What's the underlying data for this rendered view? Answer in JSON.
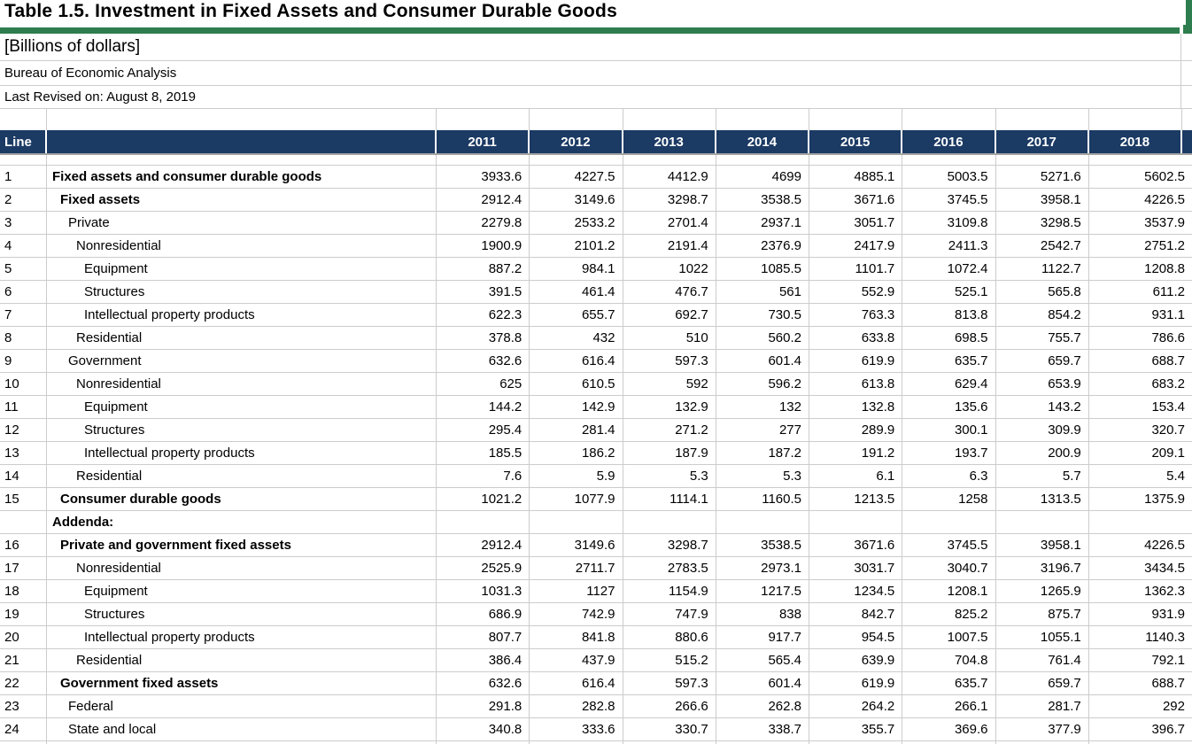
{
  "title": "Table 1.5. Investment in Fixed Assets and Consumer Durable Goods",
  "subtitle": "[Billions of dollars]",
  "source": "Bureau of Economic Analysis",
  "revised": "Last Revised on: August 8, 2019",
  "colors": {
    "header_background": "#1B3A64",
    "accent_green": "#2E7D4E",
    "gridline": "#CCCCCC",
    "header_underline": "#A3A3A3"
  },
  "table": {
    "line_header": "Line",
    "years": [
      "2011",
      "2012",
      "2013",
      "2014",
      "2015",
      "2016",
      "2017",
      "2018"
    ],
    "rows": [
      {
        "line": "1",
        "label": "Fixed assets and consumer durable goods",
        "indent": 0,
        "bold": true,
        "values": [
          "3933.6",
          "4227.5",
          "4412.9",
          "4699",
          "4885.1",
          "5003.5",
          "5271.6",
          "5602.5"
        ]
      },
      {
        "line": "2",
        "label": "Fixed assets",
        "indent": 1,
        "bold": true,
        "values": [
          "2912.4",
          "3149.6",
          "3298.7",
          "3538.5",
          "3671.6",
          "3745.5",
          "3958.1",
          "4226.5"
        ]
      },
      {
        "line": "3",
        "label": "Private",
        "indent": 2,
        "bold": false,
        "values": [
          "2279.8",
          "2533.2",
          "2701.4",
          "2937.1",
          "3051.7",
          "3109.8",
          "3298.5",
          "3537.9"
        ]
      },
      {
        "line": "4",
        "label": "Nonresidential",
        "indent": 3,
        "bold": false,
        "values": [
          "1900.9",
          "2101.2",
          "2191.4",
          "2376.9",
          "2417.9",
          "2411.3",
          "2542.7",
          "2751.2"
        ]
      },
      {
        "line": "5",
        "label": "Equipment",
        "indent": 4,
        "bold": false,
        "values": [
          "887.2",
          "984.1",
          "1022",
          "1085.5",
          "1101.7",
          "1072.4",
          "1122.7",
          "1208.8"
        ]
      },
      {
        "line": "6",
        "label": "Structures",
        "indent": 4,
        "bold": false,
        "values": [
          "391.5",
          "461.4",
          "476.7",
          "561",
          "552.9",
          "525.1",
          "565.8",
          "611.2"
        ]
      },
      {
        "line": "7",
        "label": "Intellectual property products",
        "indent": 4,
        "bold": false,
        "values": [
          "622.3",
          "655.7",
          "692.7",
          "730.5",
          "763.3",
          "813.8",
          "854.2",
          "931.1"
        ]
      },
      {
        "line": "8",
        "label": "Residential",
        "indent": 3,
        "bold": false,
        "values": [
          "378.8",
          "432",
          "510",
          "560.2",
          "633.8",
          "698.5",
          "755.7",
          "786.6"
        ]
      },
      {
        "line": "9",
        "label": "Government",
        "indent": 2,
        "bold": false,
        "values": [
          "632.6",
          "616.4",
          "597.3",
          "601.4",
          "619.9",
          "635.7",
          "659.7",
          "688.7"
        ]
      },
      {
        "line": "10",
        "label": "Nonresidential",
        "indent": 3,
        "bold": false,
        "values": [
          "625",
          "610.5",
          "592",
          "596.2",
          "613.8",
          "629.4",
          "653.9",
          "683.2"
        ]
      },
      {
        "line": "11",
        "label": "Equipment",
        "indent": 4,
        "bold": false,
        "values": [
          "144.2",
          "142.9",
          "132.9",
          "132",
          "132.8",
          "135.6",
          "143.2",
          "153.4"
        ]
      },
      {
        "line": "12",
        "label": "Structures",
        "indent": 4,
        "bold": false,
        "values": [
          "295.4",
          "281.4",
          "271.2",
          "277",
          "289.9",
          "300.1",
          "309.9",
          "320.7"
        ]
      },
      {
        "line": "13",
        "label": "Intellectual property products",
        "indent": 4,
        "bold": false,
        "values": [
          "185.5",
          "186.2",
          "187.9",
          "187.2",
          "191.2",
          "193.7",
          "200.9",
          "209.1"
        ]
      },
      {
        "line": "14",
        "label": "Residential",
        "indent": 3,
        "bold": false,
        "values": [
          "7.6",
          "5.9",
          "5.3",
          "5.3",
          "6.1",
          "6.3",
          "5.7",
          "5.4"
        ]
      },
      {
        "line": "15",
        "label": "Consumer durable goods",
        "indent": 1,
        "bold": true,
        "values": [
          "1021.2",
          "1077.9",
          "1114.1",
          "1160.5",
          "1213.5",
          "1258",
          "1313.5",
          "1375.9"
        ]
      },
      {
        "line": "",
        "label": "Addenda:",
        "indent": 0,
        "bold": true,
        "values": [
          "",
          "",
          "",
          "",
          "",
          "",
          "",
          ""
        ]
      },
      {
        "line": "16",
        "label": "Private and government fixed assets",
        "indent": 1,
        "bold": true,
        "values": [
          "2912.4",
          "3149.6",
          "3298.7",
          "3538.5",
          "3671.6",
          "3745.5",
          "3958.1",
          "4226.5"
        ]
      },
      {
        "line": "17",
        "label": "Nonresidential",
        "indent": 3,
        "bold": false,
        "values": [
          "2525.9",
          "2711.7",
          "2783.5",
          "2973.1",
          "3031.7",
          "3040.7",
          "3196.7",
          "3434.5"
        ]
      },
      {
        "line": "18",
        "label": "Equipment",
        "indent": 4,
        "bold": false,
        "values": [
          "1031.3",
          "1127",
          "1154.9",
          "1217.5",
          "1234.5",
          "1208.1",
          "1265.9",
          "1362.3"
        ]
      },
      {
        "line": "19",
        "label": "Structures",
        "indent": 4,
        "bold": false,
        "values": [
          "686.9",
          "742.9",
          "747.9",
          "838",
          "842.7",
          "825.2",
          "875.7",
          "931.9"
        ]
      },
      {
        "line": "20",
        "label": "Intellectual property products",
        "indent": 4,
        "bold": false,
        "values": [
          "807.7",
          "841.8",
          "880.6",
          "917.7",
          "954.5",
          "1007.5",
          "1055.1",
          "1140.3"
        ]
      },
      {
        "line": "21",
        "label": "Residential",
        "indent": 3,
        "bold": false,
        "values": [
          "386.4",
          "437.9",
          "515.2",
          "565.4",
          "639.9",
          "704.8",
          "761.4",
          "792.1"
        ]
      },
      {
        "line": "22",
        "label": "Government fixed assets",
        "indent": 1,
        "bold": true,
        "values": [
          "632.6",
          "616.4",
          "597.3",
          "601.4",
          "619.9",
          "635.7",
          "659.7",
          "688.7"
        ]
      },
      {
        "line": "23",
        "label": "Federal",
        "indent": 2,
        "bold": false,
        "values": [
          "291.8",
          "282.8",
          "266.6",
          "262.8",
          "264.2",
          "266.1",
          "281.7",
          "292"
        ]
      },
      {
        "line": "24",
        "label": "State and local",
        "indent": 2,
        "bold": false,
        "values": [
          "340.8",
          "333.6",
          "330.7",
          "338.7",
          "355.7",
          "369.6",
          "377.9",
          "396.7"
        ]
      }
    ]
  }
}
